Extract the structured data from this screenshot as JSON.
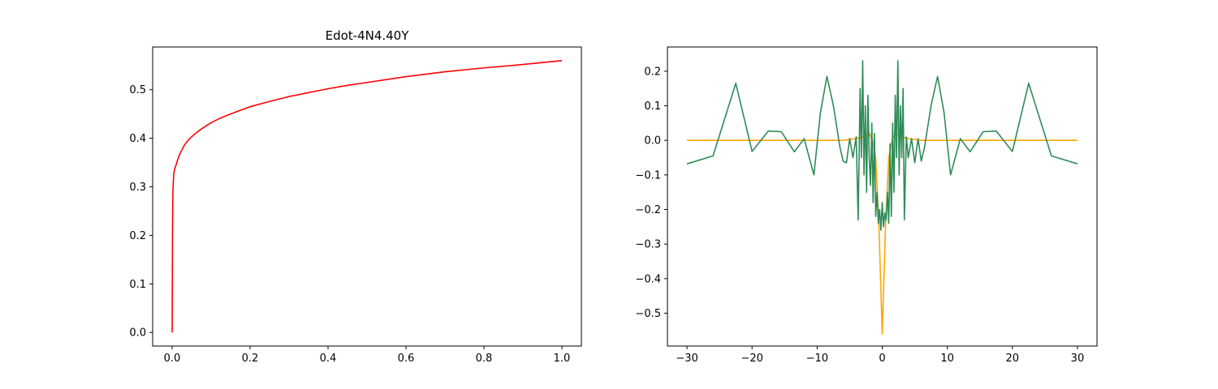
{
  "chart_data": [
    {
      "type": "line",
      "title": "Edot-4N4.40Y",
      "xlabel": "",
      "ylabel": "",
      "xlim": [
        -0.05,
        1.05
      ],
      "ylim": [
        -0.028,
        0.588
      ],
      "xticks": [
        0.0,
        0.2,
        0.4,
        0.6,
        0.8,
        1.0
      ],
      "xtick_labels": [
        "0.0",
        "0.2",
        "0.4",
        "0.6",
        "0.8",
        "1.0"
      ],
      "yticks": [
        0.0,
        0.1,
        0.2,
        0.3,
        0.4,
        0.5
      ],
      "ytick_labels": [
        "0.0",
        "0.1",
        "0.2",
        "0.3",
        "0.4",
        "0.5"
      ],
      "grid": false,
      "series": [
        {
          "color": "#ff0000",
          "x": [
            0.0,
            0.0005,
            0.001,
            0.002,
            0.003,
            0.004,
            0.006,
            0.008,
            0.01,
            0.015,
            0.02,
            0.03,
            0.04,
            0.05,
            0.06,
            0.08,
            0.1,
            0.125,
            0.15,
            0.2,
            0.25,
            0.3,
            0.35,
            0.4,
            0.45,
            0.5,
            0.6,
            0.7,
            0.8,
            0.9,
            1.0
          ],
          "y": [
            0.0,
            0.1,
            0.22,
            0.29,
            0.31,
            0.325,
            0.335,
            0.34,
            0.345,
            0.358,
            0.368,
            0.384,
            0.395,
            0.403,
            0.41,
            0.422,
            0.432,
            0.442,
            0.45,
            0.465,
            0.476,
            0.486,
            0.494,
            0.502,
            0.509,
            0.515,
            0.527,
            0.537,
            0.545,
            0.552,
            0.56
          ]
        }
      ]
    },
    {
      "type": "line",
      "title": "",
      "xlabel": "",
      "ylabel": "",
      "xlim": [
        -33,
        33
      ],
      "ylim": [
        -0.595,
        0.27
      ],
      "xticks": [
        -30,
        -20,
        -10,
        0,
        10,
        20,
        30
      ],
      "xtick_labels": [
        "−30",
        "−20",
        "−10",
        "0",
        "10",
        "20",
        "30"
      ],
      "yticks": [
        -0.5,
        -0.4,
        -0.3,
        -0.2,
        -0.1,
        0.0,
        0.1,
        0.2
      ],
      "ytick_labels": [
        "−0.5",
        "−0.4",
        "−0.3",
        "−0.2",
        "−0.1",
        "0.0",
        "0.1",
        "0.2"
      ],
      "grid": false,
      "series": [
        {
          "color": "#ffa500",
          "x": [
            -30,
            -6,
            -4,
            -3,
            -2,
            -1.5,
            -1,
            -0.5,
            0,
            0.5,
            1,
            1.5,
            2,
            3,
            4,
            6,
            30
          ],
          "y": [
            0.0,
            0.0,
            0.005,
            0.01,
            0.02,
            0.0,
            -0.05,
            -0.25,
            -0.56,
            -0.25,
            -0.05,
            0.0,
            0.02,
            0.01,
            0.005,
            0.0,
            0.0
          ]
        },
        {
          "color": "#2e8b57",
          "x": [
            -30,
            -26,
            -22.5,
            -20,
            -17.5,
            -15.5,
            -13.5,
            -12,
            -10.5,
            -9.5,
            -8.5,
            -7.5,
            -6.5,
            -6,
            -5.5,
            -5,
            -4.5,
            -4,
            -3.7,
            -3.4,
            -3.2,
            -3.0,
            -2.8,
            -2.6,
            -2.4,
            -2.2,
            -2.0,
            -1.8,
            -1.6,
            -1.4,
            -1.2,
            -1.0,
            -0.8,
            -0.6,
            -0.4,
            -0.2,
            0.0,
            0.2,
            0.4,
            0.6,
            0.8,
            1.0,
            1.2,
            1.4,
            1.6,
            1.8,
            2.0,
            2.2,
            2.4,
            2.6,
            2.8,
            3.0,
            3.2,
            3.4,
            3.7,
            4,
            4.5,
            5,
            5.5,
            6,
            6.5,
            7.5,
            8.5,
            9.5,
            10.5,
            12,
            13.5,
            15.5,
            17.5,
            20,
            22.5,
            26,
            30
          ],
          "y": [
            -0.068,
            -0.045,
            0.165,
            -0.032,
            0.027,
            0.025,
            -0.033,
            0.005,
            -0.1,
            0.08,
            0.185,
            0.1,
            -0.02,
            -0.06,
            -0.065,
            0.005,
            -0.05,
            0.01,
            -0.23,
            0.15,
            -0.05,
            0.23,
            -0.1,
            0.1,
            -0.15,
            0.13,
            -0.05,
            -0.13,
            0.05,
            -0.18,
            0.02,
            -0.22,
            -0.15,
            -0.24,
            -0.2,
            -0.26,
            -0.18,
            -0.25,
            -0.21,
            -0.23,
            -0.15,
            -0.24,
            -0.01,
            -0.22,
            0.05,
            -0.15,
            0.13,
            -0.05,
            0.23,
            -0.1,
            0.1,
            -0.05,
            0.15,
            -0.23,
            0.01,
            -0.05,
            0.005,
            -0.065,
            0.005,
            -0.06,
            -0.02,
            0.1,
            0.185,
            0.08,
            -0.1,
            0.005,
            -0.033,
            0.025,
            0.027,
            -0.032,
            0.165,
            -0.045,
            -0.068
          ]
        }
      ]
    }
  ]
}
